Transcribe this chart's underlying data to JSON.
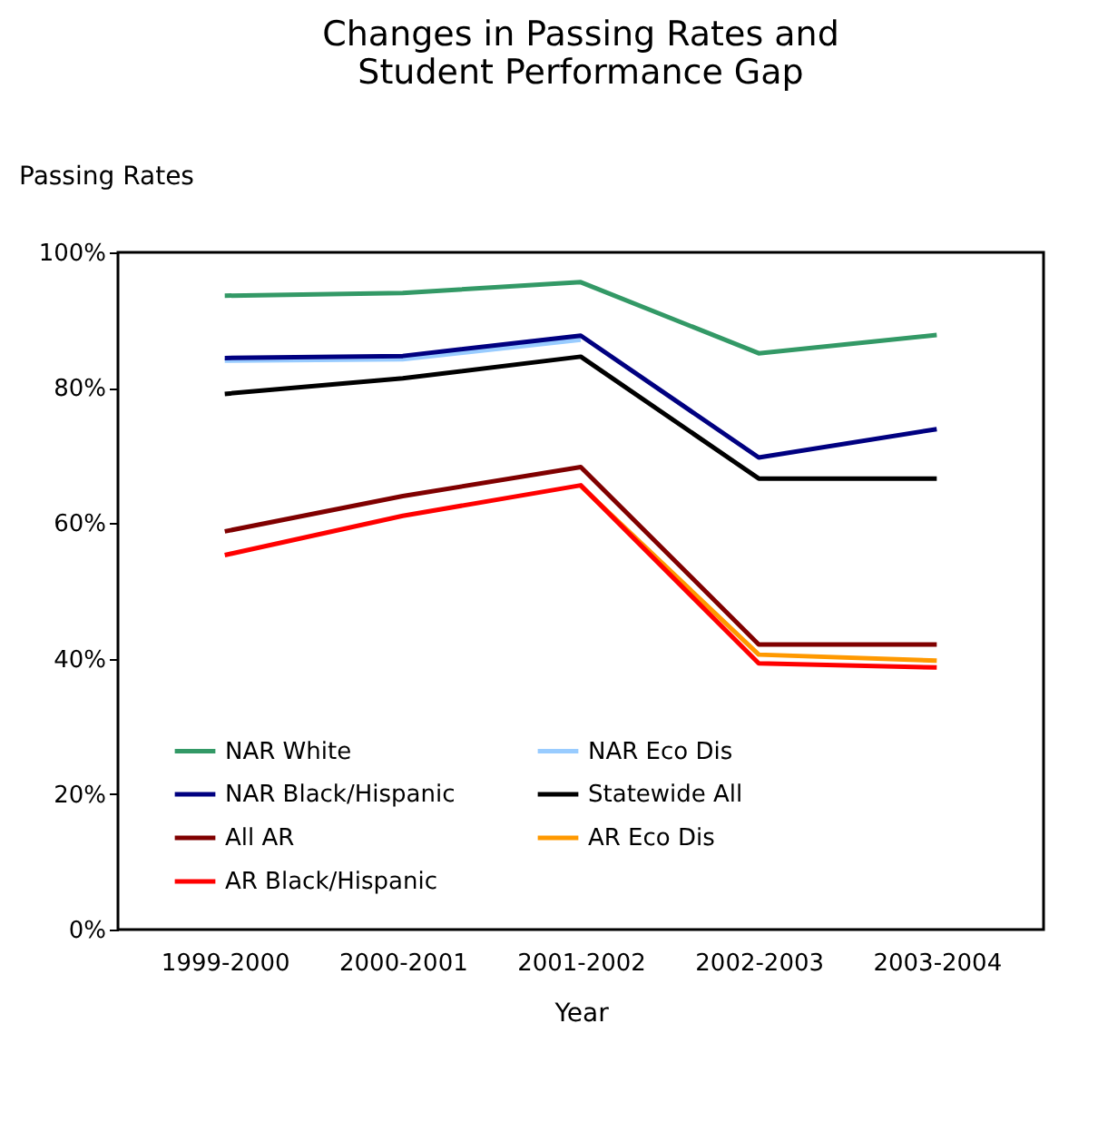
{
  "chart_data": {
    "type": "line",
    "title": "Changes in Passing Rates and\nStudent Performance Gap",
    "xlabel": "Year",
    "ylabel": "Passing Rates",
    "categories": [
      "1999-2000",
      "2000-2001",
      "2001-2002",
      "2002-2003",
      "2003-2004"
    ],
    "series": [
      {
        "name": "NAR White",
        "color": "#339966",
        "values": [
          93.6,
          94.0,
          95.6,
          85.1,
          87.8
        ]
      },
      {
        "name": "NAR Eco Dis",
        "color": "#99ccff",
        "values": [
          84.0,
          84.2,
          87.1,
          null,
          null
        ]
      },
      {
        "name": "NAR Black/Hispanic",
        "color": "#000080",
        "values": [
          84.4,
          84.7,
          87.7,
          69.7,
          73.9
        ]
      },
      {
        "name": "Statewide All",
        "color": "#000000",
        "values": [
          79.1,
          81.4,
          84.6,
          66.6,
          66.6
        ]
      },
      {
        "name": "All AR",
        "color": "#800000",
        "values": [
          58.8,
          64.0,
          68.3,
          42.1,
          42.1
        ]
      },
      {
        "name": "AR Eco Dis",
        "color": "#ff9900",
        "values": [
          null,
          null,
          65.5,
          40.6,
          39.7
        ]
      },
      {
        "name": "AR Black/Hispanic",
        "color": "#ff0000",
        "values": [
          55.3,
          61.1,
          65.6,
          39.3,
          38.7
        ]
      }
    ],
    "ylim": [
      0,
      100
    ],
    "yticks": [
      {
        "value": 0,
        "label": "0%"
      },
      {
        "value": 20,
        "label": "20%"
      },
      {
        "value": 40,
        "label": "40%"
      },
      {
        "value": 60,
        "label": "60%"
      },
      {
        "value": 80,
        "label": "80%"
      },
      {
        "value": 100,
        "label": "100%"
      }
    ],
    "grid": false,
    "legend": "bottom left",
    "marker": "none",
    "line_style": "solid"
  }
}
